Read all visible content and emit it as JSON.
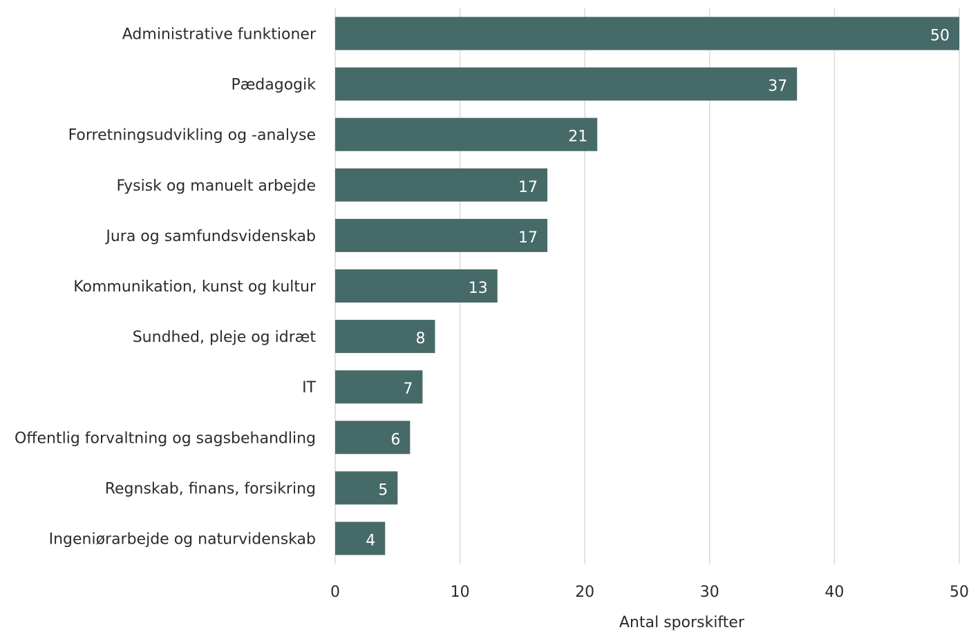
{
  "chart_data": {
    "type": "bar",
    "orientation": "horizontal",
    "categories": [
      "Administrative funktioner",
      "Pædagogik",
      "Forretningsudvikling og -analyse",
      "Fysisk og manuelt arbejde",
      "Jura og samfundsvidenskab",
      "Kommunikation, kunst og kultur",
      "Sundhed, pleje og idræt",
      "IT",
      "Offentlig forvaltning og sagsbehandling",
      "Regnskab, finans, forsikring",
      "Ingeniørarbejde og naturvidenskab"
    ],
    "values": [
      50,
      37,
      21,
      17,
      17,
      13,
      8,
      7,
      6,
      5,
      4
    ],
    "xlabel": "Antal sporskifter",
    "ylabel": "",
    "xlim": [
      0,
      50
    ],
    "xticks": [
      0,
      10,
      20,
      30,
      40,
      50
    ],
    "grid": true,
    "data_labels": true,
    "bar_color": "#466a68",
    "label_color": "#ffffff"
  }
}
